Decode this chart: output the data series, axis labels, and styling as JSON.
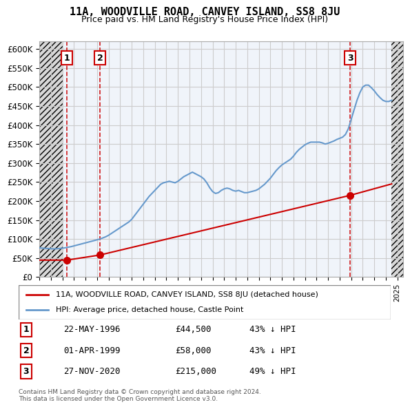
{
  "title": "11A, WOODVILLE ROAD, CANVEY ISLAND, SS8 8JU",
  "subtitle": "Price paid vs. HM Land Registry's House Price Index (HPI)",
  "ylabel": "",
  "xlabel": "",
  "ylim": [
    0,
    620000
  ],
  "yticks": [
    0,
    50000,
    100000,
    150000,
    200000,
    250000,
    300000,
    350000,
    400000,
    450000,
    500000,
    550000,
    600000
  ],
  "ytick_labels": [
    "£0",
    "£50K",
    "£100K",
    "£150K",
    "£200K",
    "£250K",
    "£300K",
    "£350K",
    "£400K",
    "£450K",
    "£500K",
    "£550K",
    "£600K"
  ],
  "xlim_start": 1994.0,
  "xlim_end": 2025.5,
  "transactions": [
    {
      "year": 1996.38,
      "price": 44500,
      "label": "1",
      "date": "22-MAY-1996",
      "amount": "£44,500",
      "hpi_diff": "43% ↓ HPI"
    },
    {
      "year": 1999.25,
      "price": 58000,
      "label": "2",
      "date": "01-APR-1999",
      "amount": "£58,000",
      "hpi_diff": "43% ↓ HPI"
    },
    {
      "year": 2020.91,
      "price": 215000,
      "label": "3",
      "date": "27-NOV-2020",
      "amount": "£215,000",
      "hpi_diff": "49% ↓ HPI"
    }
  ],
  "legend_entries": [
    "11A, WOODVILLE ROAD, CANVEY ISLAND, SS8 8JU (detached house)",
    "HPI: Average price, detached house, Castle Point"
  ],
  "footer": "Contains HM Land Registry data © Crown copyright and database right 2024.\nThis data is licensed under the Open Government Licence v3.0.",
  "red_line_color": "#cc0000",
  "blue_line_color": "#6699cc",
  "grid_color": "#cccccc",
  "transaction_vline_color": "#cc0000",
  "hpi_data": {
    "years": [
      1994.0,
      1994.25,
      1994.5,
      1994.75,
      1995.0,
      1995.25,
      1995.5,
      1995.75,
      1996.0,
      1996.25,
      1996.5,
      1996.75,
      1997.0,
      1997.25,
      1997.5,
      1997.75,
      1998.0,
      1998.25,
      1998.5,
      1998.75,
      1999.0,
      1999.25,
      1999.5,
      1999.75,
      2000.0,
      2000.25,
      2000.5,
      2000.75,
      2001.0,
      2001.25,
      2001.5,
      2001.75,
      2002.0,
      2002.25,
      2002.5,
      2002.75,
      2003.0,
      2003.25,
      2003.5,
      2003.75,
      2004.0,
      2004.25,
      2004.5,
      2004.75,
      2005.0,
      2005.25,
      2005.5,
      2005.75,
      2006.0,
      2006.25,
      2006.5,
      2006.75,
      2007.0,
      2007.25,
      2007.5,
      2007.75,
      2008.0,
      2008.25,
      2008.5,
      2008.75,
      2009.0,
      2009.25,
      2009.5,
      2009.75,
      2010.0,
      2010.25,
      2010.5,
      2010.75,
      2011.0,
      2011.25,
      2011.5,
      2011.75,
      2012.0,
      2012.25,
      2012.5,
      2012.75,
      2013.0,
      2013.25,
      2013.5,
      2013.75,
      2014.0,
      2014.25,
      2014.5,
      2014.75,
      2015.0,
      2015.25,
      2015.5,
      2015.75,
      2016.0,
      2016.25,
      2016.5,
      2016.75,
      2017.0,
      2017.25,
      2017.5,
      2017.75,
      2018.0,
      2018.25,
      2018.5,
      2018.75,
      2019.0,
      2019.25,
      2019.5,
      2019.75,
      2020.0,
      2020.25,
      2020.5,
      2020.75,
      2021.0,
      2021.25,
      2021.5,
      2021.75,
      2022.0,
      2022.25,
      2022.5,
      2022.75,
      2023.0,
      2023.25,
      2023.5,
      2023.75,
      2024.0,
      2024.25,
      2024.5
    ],
    "values": [
      77000,
      76000,
      75500,
      75000,
      74500,
      74000,
      74500,
      75000,
      76000,
      77000,
      78500,
      80000,
      82000,
      84000,
      86000,
      88000,
      90000,
      92000,
      94000,
      96000,
      98000,
      100000,
      103000,
      106000,
      110000,
      115000,
      120000,
      125000,
      130000,
      135000,
      140000,
      145000,
      152000,
      162000,
      172000,
      182000,
      192000,
      202000,
      212000,
      220000,
      228000,
      236000,
      244000,
      248000,
      250000,
      252000,
      250000,
      248000,
      252000,
      258000,
      264000,
      268000,
      272000,
      276000,
      272000,
      268000,
      264000,
      258000,
      248000,
      235000,
      225000,
      220000,
      222000,
      228000,
      232000,
      234000,
      232000,
      228000,
      226000,
      228000,
      225000,
      222000,
      222000,
      224000,
      226000,
      228000,
      232000,
      238000,
      244000,
      252000,
      260000,
      270000,
      280000,
      288000,
      295000,
      300000,
      305000,
      310000,
      318000,
      328000,
      336000,
      342000,
      348000,
      352000,
      355000,
      355000,
      355000,
      355000,
      353000,
      350000,
      352000,
      355000,
      358000,
      362000,
      365000,
      368000,
      375000,
      390000,
      415000,
      440000,
      465000,
      485000,
      500000,
      505000,
      505000,
      498000,
      490000,
      480000,
      472000,
      465000,
      462000,
      462000,
      465000
    ]
  },
  "price_line_data": {
    "years": [
      1994.0,
      1996.38,
      1996.38,
      1999.25,
      1999.25,
      2020.91,
      2020.91,
      2024.5
    ],
    "values": [
      44500,
      44500,
      58000,
      58000,
      215000,
      215000,
      215000,
      245000
    ]
  }
}
